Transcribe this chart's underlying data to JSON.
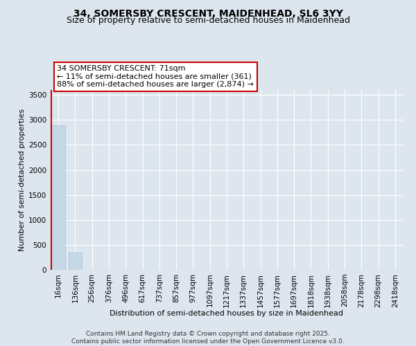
{
  "title_line1": "34, SOMERSBY CRESCENT, MAIDENHEAD, SL6 3YY",
  "title_line2": "Size of property relative to semi-detached houses in Maidenhead",
  "xlabel": "Distribution of semi-detached houses by size in Maidenhead",
  "ylabel": "Number of semi-detached properties",
  "categories": [
    "16sqm",
    "136sqm",
    "256sqm",
    "376sqm",
    "496sqm",
    "617sqm",
    "737sqm",
    "857sqm",
    "977sqm",
    "1097sqm",
    "1217sqm",
    "1337sqm",
    "1457sqm",
    "1577sqm",
    "1697sqm",
    "1818sqm",
    "1938sqm",
    "2058sqm",
    "2178sqm",
    "2298sqm",
    "2418sqm"
  ],
  "values": [
    2900,
    350,
    5,
    2,
    1,
    1,
    0,
    0,
    0,
    0,
    0,
    0,
    0,
    0,
    0,
    0,
    0,
    0,
    0,
    0,
    0
  ],
  "bar_color": "#c5d8e8",
  "bar_edge_color": "#a8c0d4",
  "vline_color": "#cc0000",
  "annotation_text": "34 SOMERSBY CRESCENT: 71sqm\n← 11% of semi-detached houses are smaller (361)\n88% of semi-detached houses are larger (2,874) →",
  "annotation_box_color": "#ffffff",
  "annotation_box_edge": "#cc0000",
  "ylim": [
    0,
    3600
  ],
  "yticks": [
    0,
    500,
    1000,
    1500,
    2000,
    2500,
    3000,
    3500
  ],
  "background_color": "#dde6ee",
  "plot_background": "#dde6ee",
  "grid_color": "#ffffff",
  "title_fontsize": 10,
  "subtitle_fontsize": 9,
  "axis_label_fontsize": 8,
  "tick_fontsize": 7.5,
  "footer_text": "Contains HM Land Registry data © Crown copyright and database right 2025.\nContains public sector information licensed under the Open Government Licence v3.0."
}
